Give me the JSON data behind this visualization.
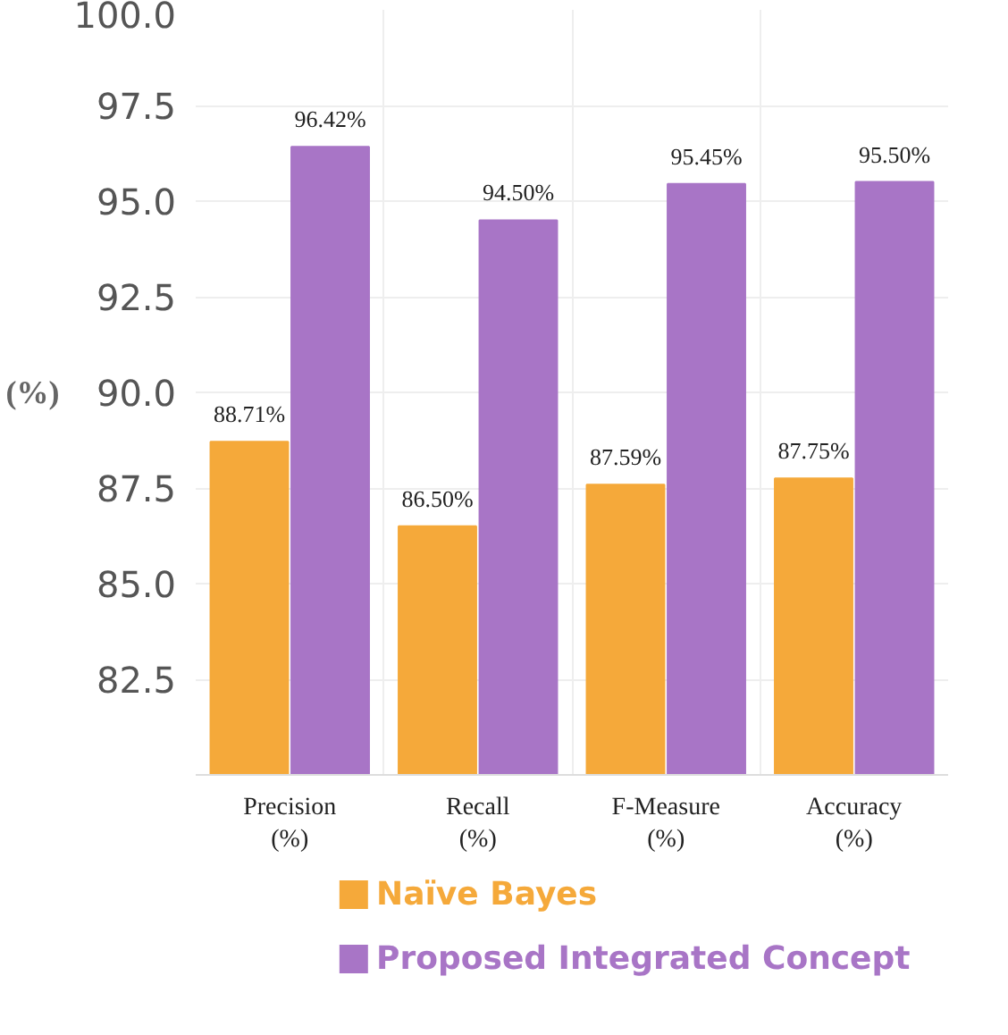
{
  "chart_data": {
    "type": "bar",
    "ylabel": "(%)",
    "categories": [
      "Precision\n(%)",
      "Recall\n(%)",
      "F-Measure\n(%)",
      "Accuracy\n(%)"
    ],
    "series": [
      {
        "name": "Naïve Bayes",
        "color": "#f5a93a",
        "values": [
          88.71,
          86.5,
          87.59,
          87.75
        ],
        "value_labels": [
          "88.71%",
          "86.50%",
          "87.59%",
          "87.75%"
        ]
      },
      {
        "name": "Proposed Integrated Concept",
        "color": "#a875c6",
        "values": [
          96.42,
          94.5,
          95.45,
          95.5
        ],
        "value_labels": [
          "96.42%",
          "94.50%",
          "95.45%",
          "95.50%"
        ]
      }
    ],
    "ylim": [
      80,
      100
    ],
    "yticks": [
      {
        "value": 82.5,
        "label": "82.5"
      },
      {
        "value": 85,
        "label": "85.0"
      },
      {
        "value": 87.5,
        "label": "87.5"
      },
      {
        "value": 90,
        "label": "90.0"
      },
      {
        "value": 92.5,
        "label": "92.5"
      },
      {
        "value": 95,
        "label": "95.0"
      },
      {
        "value": 97.5,
        "label": "97.5"
      },
      {
        "value": 100,
        "label": "100.0"
      }
    ],
    "grid": true,
    "legend": "bottom"
  }
}
